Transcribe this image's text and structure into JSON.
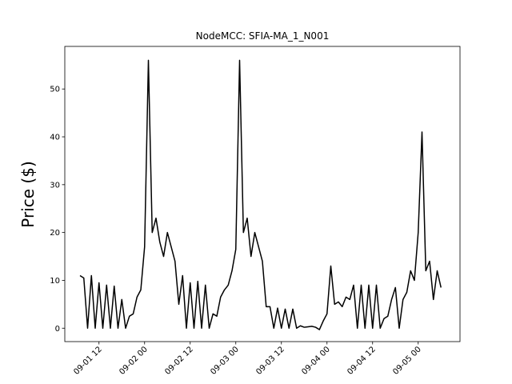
{
  "chart_data": {
    "type": "line",
    "title": "NodeMCC: SFIA-MA_1_N001",
    "y_label": "Price ($)",
    "x": [
      "09-01 07",
      "09-01 08",
      "09-01 09",
      "09-01 10",
      "09-01 11",
      "09-01 12",
      "09-01 13",
      "09-01 14",
      "09-01 15",
      "09-01 16",
      "09-01 17",
      "09-01 18",
      "09-01 19",
      "09-01 20",
      "09-01 21",
      "09-01 22",
      "09-01 23",
      "09-02 00",
      "09-02 01",
      "09-02 02",
      "09-02 03",
      "09-02 04",
      "09-02 05",
      "09-02 06",
      "09-02 07",
      "09-02 08",
      "09-02 09",
      "09-02 10",
      "09-02 11",
      "09-02 12",
      "09-02 13",
      "09-02 14",
      "09-02 15",
      "09-02 16",
      "09-02 17",
      "09-02 18",
      "09-02 19",
      "09-02 20",
      "09-02 21",
      "09-02 22",
      "09-02 23",
      "09-03 00",
      "09-03 01",
      "09-03 02",
      "09-03 03",
      "09-03 04",
      "09-03 05",
      "09-03 06",
      "09-03 07",
      "09-03 08",
      "09-03 09",
      "09-03 10",
      "09-03 11",
      "09-03 12",
      "09-03 13",
      "09-03 14",
      "09-03 15",
      "09-03 16",
      "09-03 17",
      "09-03 18",
      "09-03 19",
      "09-03 20",
      "09-03 21",
      "09-03 22",
      "09-03 23",
      "09-04 00",
      "09-04 01",
      "09-04 02",
      "09-04 03",
      "09-04 04",
      "09-04 05",
      "09-04 06",
      "09-04 07",
      "09-04 08",
      "09-04 09",
      "09-04 10",
      "09-04 11",
      "09-04 12",
      "09-04 13",
      "09-04 14",
      "09-04 15",
      "09-04 16",
      "09-04 17",
      "09-04 18",
      "09-04 19",
      "09-04 20",
      "09-04 21",
      "09-04 22",
      "09-04 23",
      "09-05 00",
      "09-05 01",
      "09-05 02",
      "09-05 03",
      "09-05 04",
      "09-05 05",
      "09-05 06"
    ],
    "series": [
      {
        "color": "#000000",
        "values": [
          11,
          10.5,
          0,
          11,
          0,
          9.5,
          0,
          9,
          0,
          8.8,
          0,
          6,
          0,
          2.5,
          3,
          6.5,
          8,
          17,
          56,
          20,
          23,
          18,
          15,
          20,
          17,
          14,
          5,
          11,
          0,
          9.5,
          0,
          9.8,
          0,
          9,
          0,
          3,
          2.5,
          6.5,
          8,
          9,
          12,
          16.5,
          56,
          20,
          23,
          15,
          20,
          17,
          14,
          4.5,
          4.5,
          0,
          4.2,
          0,
          4,
          0,
          4,
          0,
          0.5,
          0.2,
          0.3,
          0.4,
          0.2,
          -0.3,
          1.5,
          3,
          13,
          5,
          5.5,
          4.5,
          6.5,
          6,
          9,
          0,
          9,
          0,
          9,
          0,
          9,
          0,
          2,
          2.5,
          6,
          8.5,
          0,
          6,
          7.5,
          12,
          10,
          20,
          41,
          12,
          14,
          6,
          12,
          8.5
        ]
      }
    ],
    "xlim": [
      "09-01 03",
      "09-05 11"
    ],
    "xticks": [
      "09-01 12",
      "09-02 00",
      "09-02 12",
      "09-03 00",
      "09-03 12",
      "09-04 00",
      "09-04 12",
      "09-05 00"
    ],
    "ylim": [
      -2.8,
      58.9
    ],
    "yticks": [
      0,
      10,
      20,
      30,
      40,
      50
    ]
  }
}
